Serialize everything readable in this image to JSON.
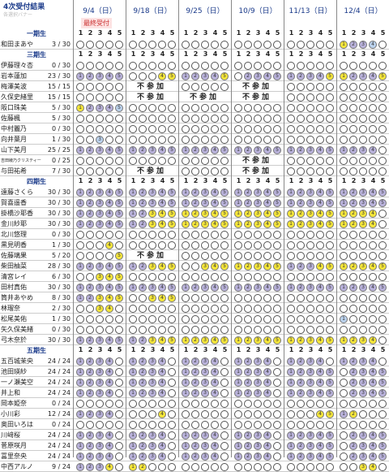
{
  "title": "4次受付結果",
  "subtitle": "各選択バナー",
  "final_label": "最終受付",
  "dates": [
    "9/4（日）",
    "9/18（日）",
    "9/25（日）",
    "10/9（日）",
    "11/13（日）",
    "12/4（日）"
  ],
  "nums": [
    "1",
    "2",
    "3",
    "4",
    "5"
  ],
  "absent": "不参加",
  "groups": [
    {
      "label": "一期生",
      "members": [
        {
          "name": "和田まあや",
          "count": "3 / 30"
        }
      ]
    },
    {
      "label": "三期生",
      "members": [
        {
          "name": "伊藤理々杏",
          "count": "0 / 30"
        },
        {
          "name": "岩本蓮加",
          "count": "23 / 30"
        },
        {
          "name": "梅澤美波",
          "count": "15 / 15"
        },
        {
          "name": "久保史緒里",
          "count": "15 / 15"
        },
        {
          "name": "阪口珠美",
          "count": "5 / 30"
        },
        {
          "name": "佐藤楓",
          "count": "5 / 30"
        },
        {
          "name": "中村麗乃",
          "count": "0 / 30"
        },
        {
          "name": "向井葉月",
          "count": "1 / 30"
        },
        {
          "name": "山下美月",
          "count": "25 / 25"
        },
        {
          "name": "吉田綾乃クリスティー",
          "count": "0 / 25"
        },
        {
          "name": "与田祐希",
          "count": "7 / 30"
        }
      ]
    },
    {
      "label": "四期生",
      "members": [
        {
          "name": "遠藤さくら",
          "count": "30 / 30"
        },
        {
          "name": "賀喜遥香",
          "count": "30 / 30"
        },
        {
          "name": "掛橋沙耶香",
          "count": "30 / 30"
        },
        {
          "name": "金川紗耶",
          "count": "30 / 30"
        },
        {
          "name": "北川悠理",
          "count": "0 / 30"
        },
        {
          "name": "黒見明香",
          "count": "1 / 30"
        },
        {
          "name": "佐藤璃果",
          "count": "5 / 20"
        },
        {
          "name": "柴田柚菜",
          "count": "28 / 30"
        },
        {
          "name": "清宮レイ",
          "count": "6 / 30"
        },
        {
          "name": "田村真佑",
          "count": "30 / 30"
        },
        {
          "name": "筒井あやめ",
          "count": "8 / 30"
        },
        {
          "name": "林瑠奈",
          "count": "2 / 30"
        },
        {
          "name": "松尾美佑",
          "count": "1 / 30"
        },
        {
          "name": "矢久保美緒",
          "count": "0 / 30"
        },
        {
          "name": "弓木奈於",
          "count": "30 / 30"
        }
      ]
    },
    {
      "label": "五期生",
      "members": [
        {
          "name": "五百城茉央",
          "count": "24 / 24"
        },
        {
          "name": "池田瑛紗",
          "count": "24 / 24"
        },
        {
          "name": "一ノ瀬美空",
          "count": "24 / 24"
        },
        {
          "name": "井上和",
          "count": "24 / 24"
        },
        {
          "name": "岡本姫奈",
          "count": "0 / 24"
        },
        {
          "name": "小川彩",
          "count": "12 / 24"
        },
        {
          "name": "奥田いろは",
          "count": "0 / 24"
        },
        {
          "name": "川﨑桜",
          "count": "24 / 24"
        },
        {
          "name": "菅原咲月",
          "count": "24 / 24"
        },
        {
          "name": "冨里奈央",
          "count": "24 / 24"
        },
        {
          "name": "中西アルノ",
          "count": "9 / 24"
        }
      ]
    }
  ]
}
